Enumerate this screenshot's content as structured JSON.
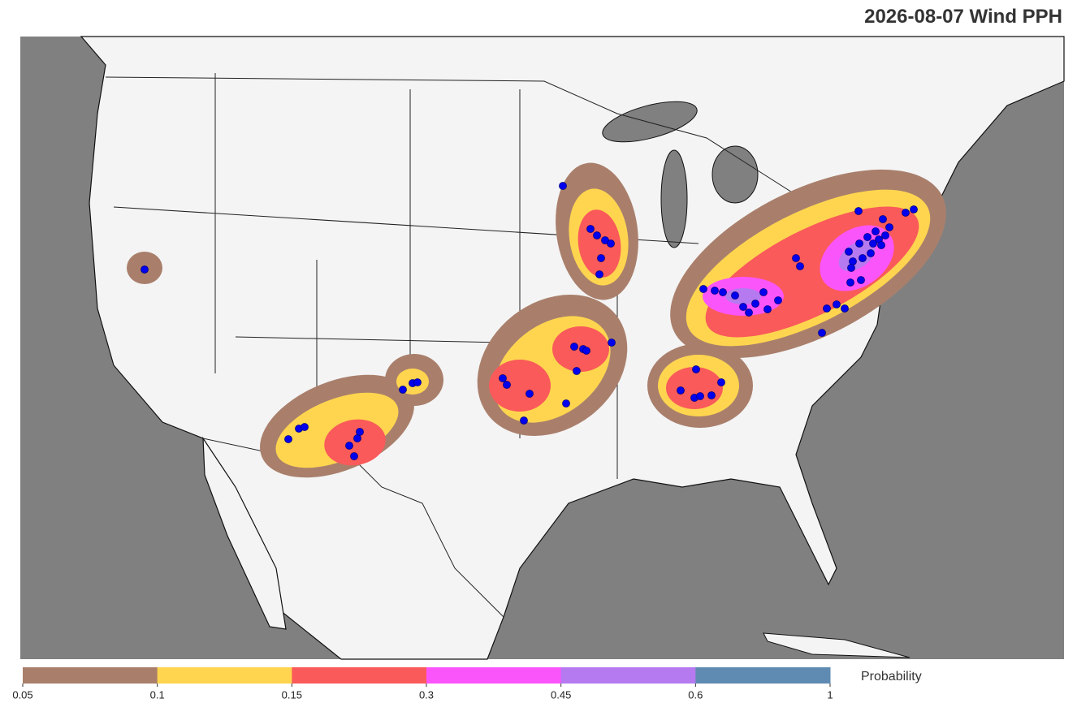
{
  "title": "2026-08-07 Wind PPH",
  "colorbar": {
    "label": "Probability",
    "ticks": [
      0.05,
      0.1,
      0.15,
      0.3,
      0.45,
      0.6,
      1
    ],
    "colors": [
      "#a97f6c",
      "#ffd54f",
      "#fa5a5a",
      "#fa55fa",
      "#b57af0",
      "#5f8bb3"
    ]
  }
}
